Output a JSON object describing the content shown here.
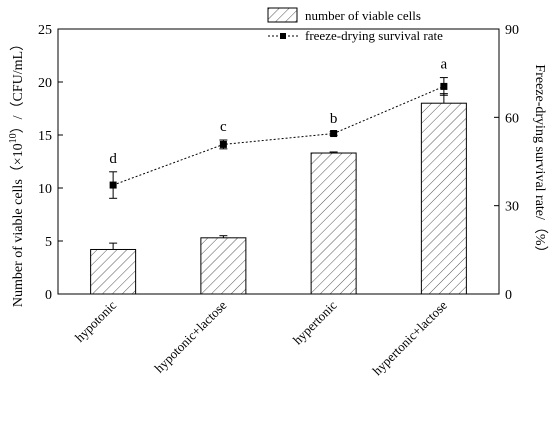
{
  "chart_data": {
    "type": "bar",
    "categories": [
      "hypotonic",
      "hypotonic+lactose",
      "hypertonic",
      "hypertonic+lactose"
    ],
    "series": [
      {
        "name": "number of viable cells",
        "type": "bar",
        "axis": "left",
        "values": [
          4.2,
          5.3,
          13.3,
          18.0
        ],
        "errors": [
          0.6,
          0.2,
          0.1,
          0.9
        ]
      },
      {
        "name": "freeze-drying survival rate",
        "type": "line",
        "axis": "right",
        "values": [
          37.0,
          50.8,
          54.5,
          70.5
        ],
        "errors": [
          4.5,
          1.5,
          0.6,
          3.0
        ],
        "significance": [
          "d",
          "c",
          "b",
          "a"
        ]
      }
    ],
    "ylabel_left_main": "Number of viable cells（×10",
    "ylabel_left_exp": "10",
    "ylabel_left_tail": "）/（CFU/mL）",
    "ylabel_right": "Freeze-drying survival rate/（%）",
    "ylim_left": [
      0,
      25
    ],
    "yticks_left": [
      "0",
      "5",
      "10",
      "15",
      "20",
      "25"
    ],
    "ylim_right": [
      0,
      90
    ],
    "yticks_right": [
      "0",
      "30",
      "60",
      "90"
    ],
    "legend_position": "top-center",
    "grid": false
  }
}
